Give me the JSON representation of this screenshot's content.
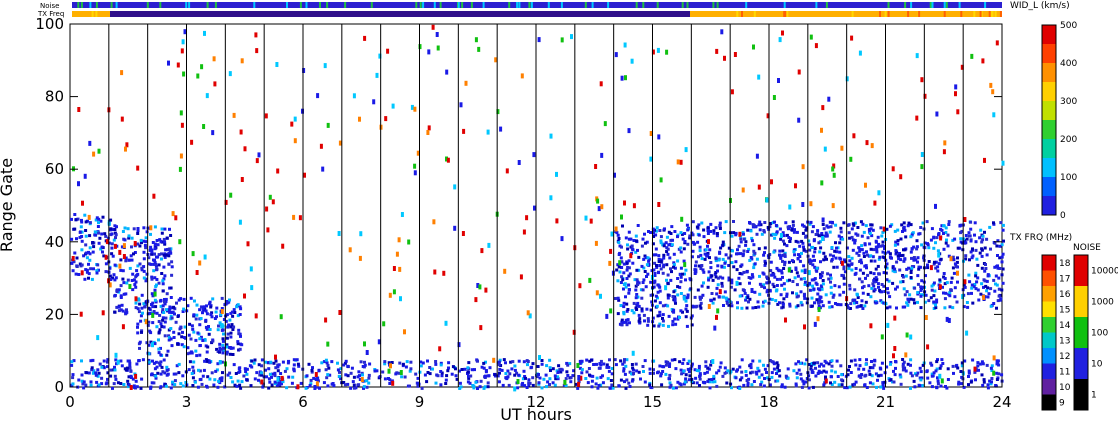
{
  "chart_data": {
    "type": "heatmap",
    "xlabel": "UT hours",
    "ylabel": "Range Gate",
    "xlim": [
      0,
      24
    ],
    "ylim": [
      0,
      100
    ],
    "x_ticks": [
      "0",
      "3",
      "6",
      "9",
      "12",
      "15",
      "18",
      "21",
      "24"
    ],
    "y_ticks": [
      "0",
      "20",
      "40",
      "60",
      "80",
      "100"
    ],
    "hour_lines": [
      1,
      2,
      3,
      4,
      5,
      6,
      7,
      8,
      9,
      10,
      11,
      12,
      13,
      14,
      15,
      16,
      17,
      18,
      19,
      20,
      21,
      22,
      23
    ],
    "top_bars": {
      "noise_label": "Noise",
      "txfreq_label": "TX Freq"
    },
    "scatter_regions": [
      {
        "x": [
          0,
          1.1
        ],
        "y": [
          30,
          48
        ],
        "color": "#1a1ae6"
      },
      {
        "x": [
          1.1,
          2.6
        ],
        "y": [
          20,
          45
        ],
        "color": "#1a1ae6"
      },
      {
        "x": [
          1.7,
          4.4
        ],
        "y": [
          9,
          25
        ],
        "color": "#1a1ae6"
      },
      {
        "x": [
          14.0,
          16.0
        ],
        "y": [
          17,
          45
        ],
        "color": "#1a1ae6"
      },
      {
        "x": [
          16.0,
          24.0
        ],
        "y": [
          22,
          46
        ],
        "color": "#1a1ae6"
      },
      {
        "x": [
          0,
          24.0
        ],
        "y": [
          0,
          8
        ],
        "color": "#1a1ae6"
      }
    ],
    "colorbars": [
      {
        "title": "WID_L (km/s)",
        "ticks": [
          "500",
          "400",
          "300",
          "200",
          "100",
          "0"
        ]
      },
      {
        "title": "TX FRQ (MHz)",
        "ticks": [
          "18",
          "17",
          "16",
          "15",
          "14",
          "13",
          "12",
          "11",
          "10",
          "9"
        ]
      },
      {
        "title": "NOISE",
        "ticks": [
          "10000",
          "1000",
          "100",
          "10",
          "1"
        ]
      }
    ]
  }
}
